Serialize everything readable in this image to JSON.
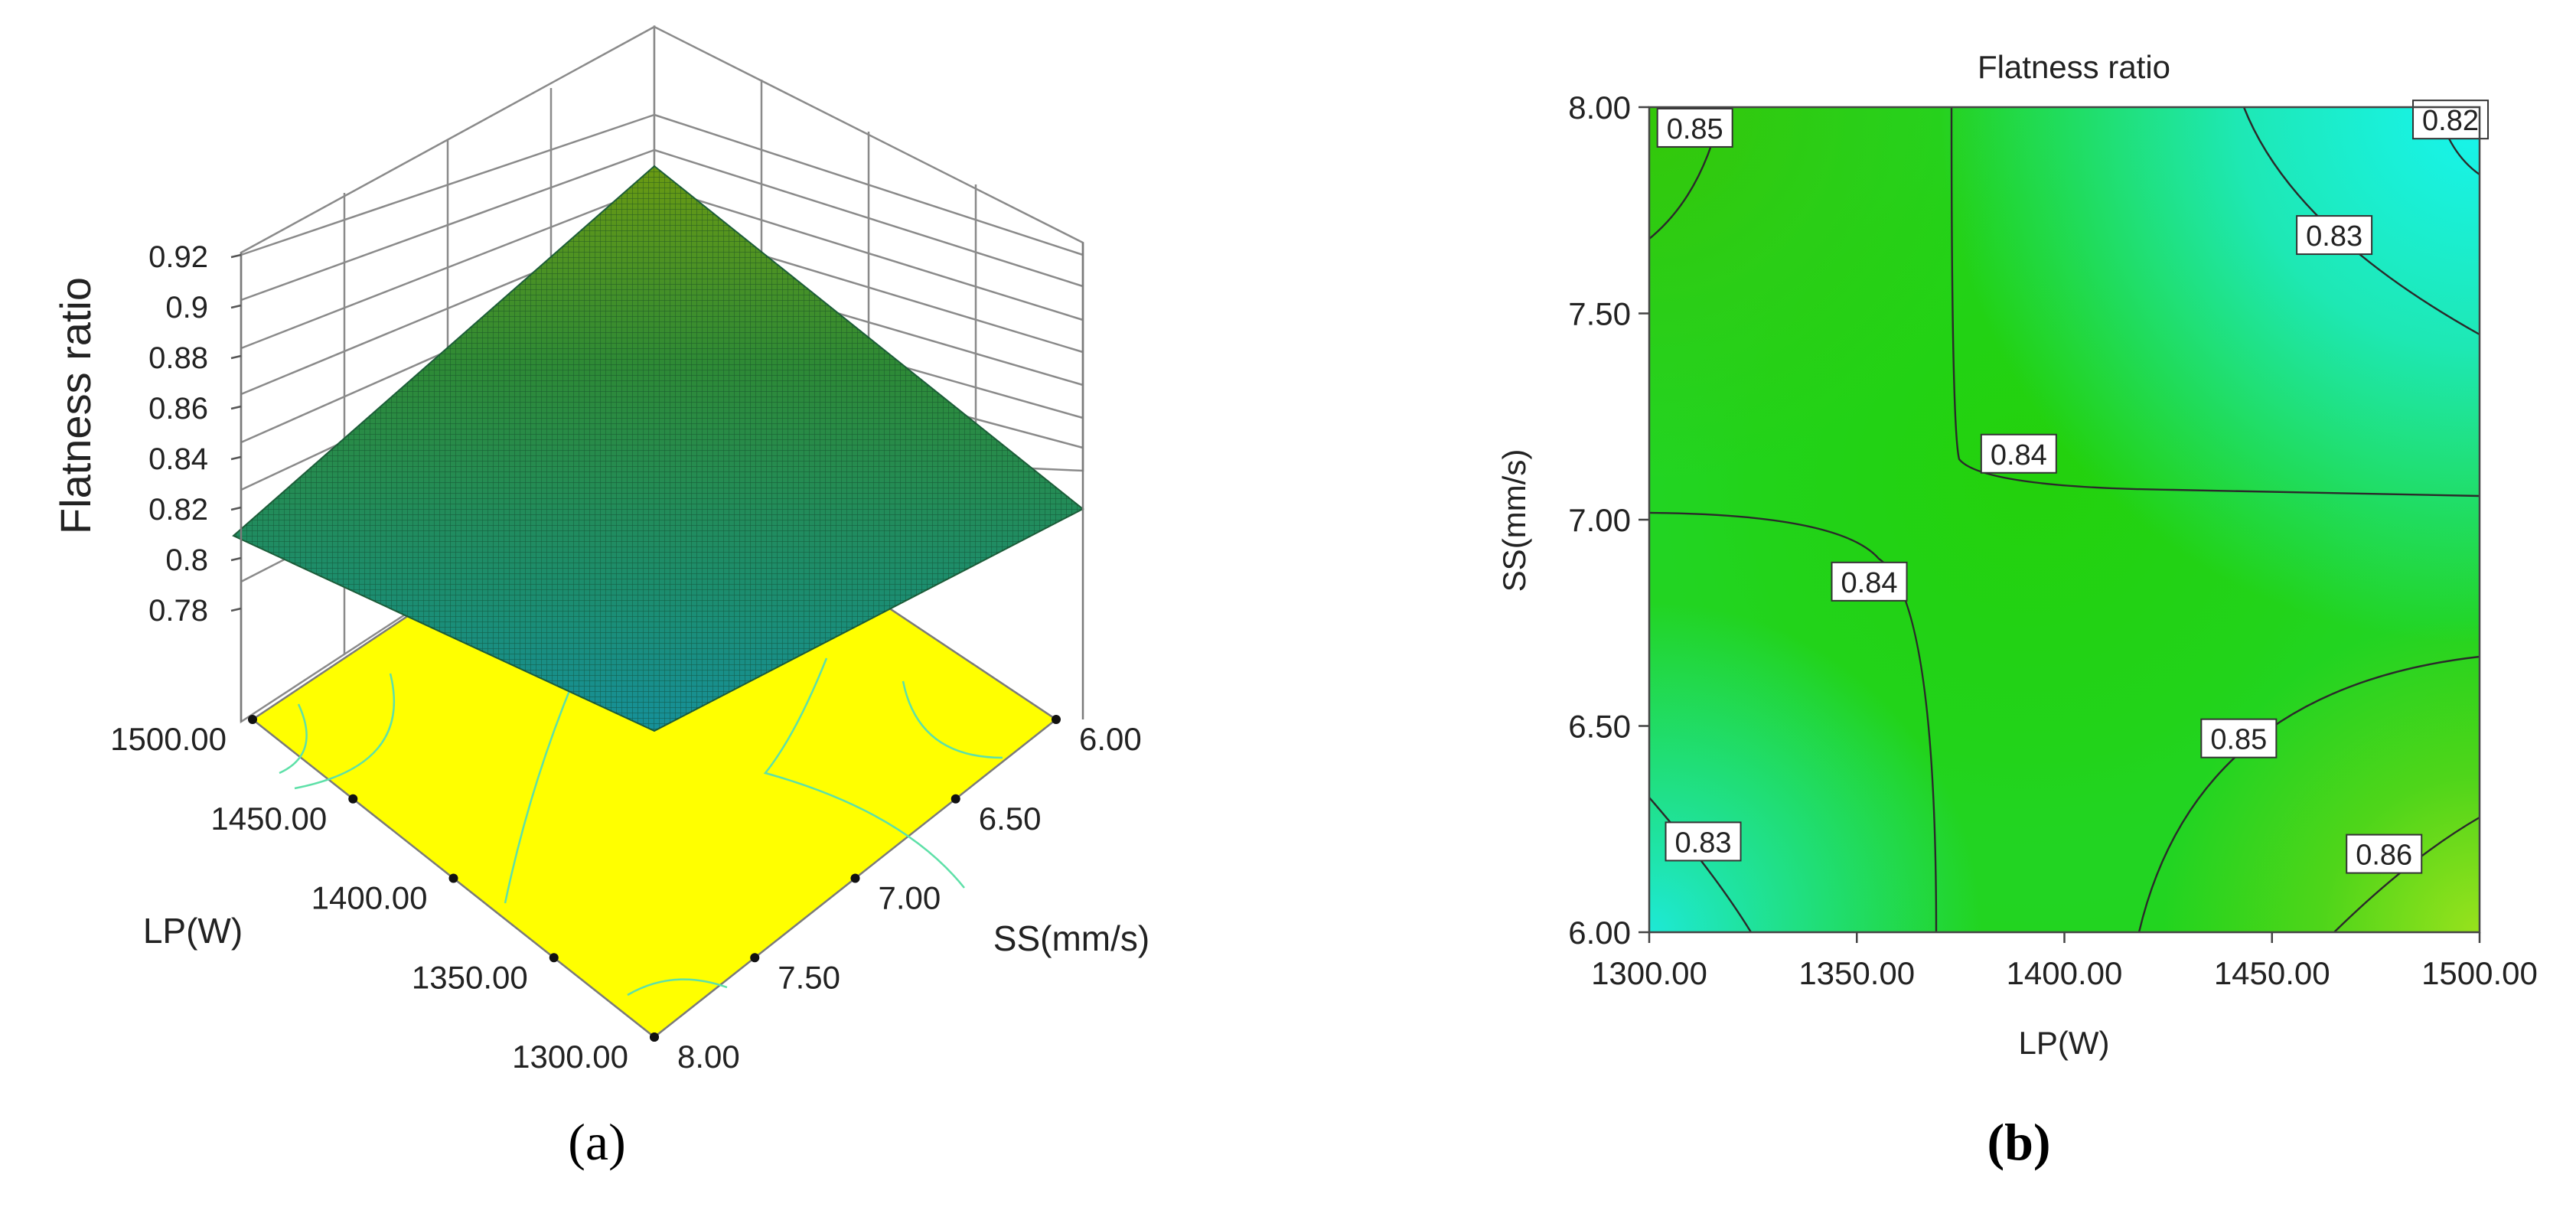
{
  "chart_data": [
    {
      "panel": "(a)",
      "type": "surface",
      "title": "",
      "zlabel": "Flatness ratio",
      "xlabel": "LP(W)",
      "ylabel": "SS(mm/s)",
      "x_ticks": [
        "1300.00",
        "1350.00",
        "1400.00",
        "1450.00",
        "1500.00"
      ],
      "y_ticks": [
        "8.00",
        "7.50",
        "7.00",
        "6.50",
        "6.00"
      ],
      "z_ticks": [
        "0.78",
        "0.8",
        "0.82",
        "0.84",
        "0.86",
        "0.88",
        "0.9",
        "0.92"
      ],
      "xlim": [
        1300,
        1500
      ],
      "ylim": [
        6,
        8
      ],
      "zlim": [
        0.77,
        0.92
      ],
      "surface_corners": [
        {
          "x": 1300,
          "y": 6,
          "z": 0.843
        },
        {
          "x": 1300,
          "y": 8,
          "z": 0.851
        },
        {
          "x": 1500,
          "y": 8,
          "z": 0.82
        },
        {
          "x": 1500,
          "y": 6,
          "z": 0.862
        }
      ],
      "colors": {
        "floor": "#ffff00",
        "surface_top": "#3f8f1e",
        "surface_bottom": "#1a8f90",
        "contour": "#5ee0a8"
      }
    },
    {
      "panel": "(b)",
      "type": "contour",
      "title": "Flatness ratio",
      "xlabel": "LP(W)",
      "ylabel": "SS(mm/s)",
      "x_ticks": [
        "1300.00",
        "1350.00",
        "1400.00",
        "1450.00",
        "1500.00"
      ],
      "y_ticks": [
        "6.00",
        "6.50",
        "7.00",
        "7.50",
        "8.00"
      ],
      "xlim": [
        1300,
        1500
      ],
      "ylim": [
        6,
        8
      ],
      "contour_levels": [
        0.82,
        0.83,
        0.84,
        0.85,
        0.86
      ],
      "contour_labels": [
        {
          "text": "0.85",
          "x": 1311,
          "y": 7.95
        },
        {
          "text": "0.83",
          "x": 1465,
          "y": 7.69
        },
        {
          "text": "0.82",
          "x": 1493,
          "y": 7.97
        },
        {
          "text": "0.84",
          "x": 1389,
          "y": 7.16
        },
        {
          "text": "0.84",
          "x": 1353,
          "y": 6.85
        },
        {
          "text": "0.85",
          "x": 1442,
          "y": 6.47
        },
        {
          "text": "0.83",
          "x": 1313,
          "y": 6.22
        },
        {
          "text": "0.86",
          "x": 1477,
          "y": 6.19
        }
      ],
      "colors": {
        "high": "#2bd412",
        "mid": "#22d81e",
        "low_corner": "#22e3d4",
        "top_right": "#1ff2e8",
        "bottom_right": "#8fe21e",
        "contour": "#2a2a2a"
      }
    }
  ],
  "panel_labels": {
    "a": "(a)",
    "b": "(b)"
  }
}
